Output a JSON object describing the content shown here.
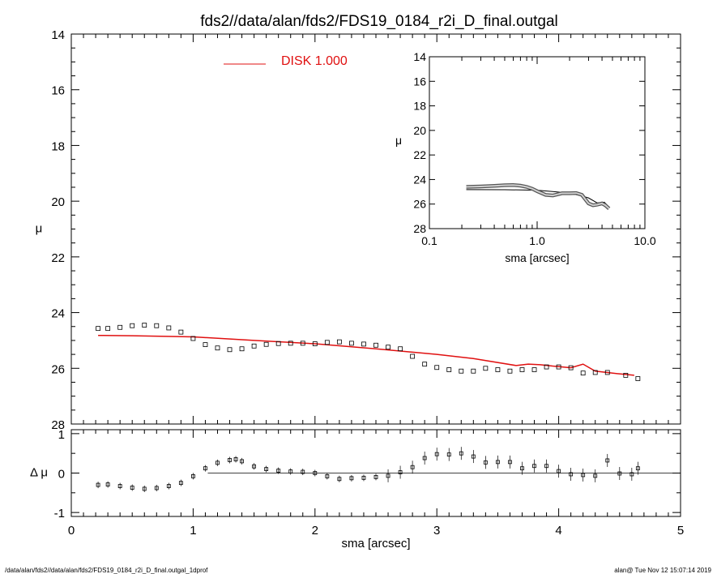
{
  "title": "fds2//data/alan/fds2/FDS19_0184_r2i_D_final.outgal",
  "footer_left": "/data/alan/fds2//data/alan/fds2/FDS19_0184_r2i_D_final.outgal_1dprof",
  "footer_right": "alan@  Tue Nov 12 15:07:14 2019",
  "colors": {
    "model": "#e01010",
    "data": "#000000"
  },
  "chart_data": [
    {
      "id": "main",
      "type": "scatter",
      "ylabel": "μ",
      "xlabel": "",
      "xlim": [
        0,
        5
      ],
      "ylim": [
        28,
        14
      ],
      "yticks": [
        14,
        16,
        18,
        20,
        22,
        24,
        26,
        28
      ],
      "legend": {
        "label": "DISK  1.000",
        "placement": "top-center"
      },
      "series": [
        {
          "name": "DISK  1.000",
          "kind": "line",
          "points": [
            [
              0.22,
              24.82
            ],
            [
              0.5,
              24.83
            ],
            [
              1.0,
              24.87
            ],
            [
              1.5,
              25.0
            ],
            [
              2.0,
              25.12
            ],
            [
              2.5,
              25.3
            ],
            [
              3.0,
              25.5
            ],
            [
              3.3,
              25.65
            ],
            [
              3.65,
              25.9
            ],
            [
              3.75,
              25.85
            ],
            [
              3.85,
              25.87
            ],
            [
              3.95,
              25.92
            ],
            [
              4.1,
              25.98
            ],
            [
              4.2,
              25.85
            ],
            [
              4.3,
              26.1
            ],
            [
              4.5,
              26.2
            ],
            [
              4.62,
              26.25
            ]
          ]
        },
        {
          "kind": "markers",
          "points": [
            [
              0.22,
              24.57
            ],
            [
              0.3,
              24.57
            ],
            [
              0.4,
              24.53
            ],
            [
              0.5,
              24.47
            ],
            [
              0.6,
              24.45
            ],
            [
              0.7,
              24.47
            ],
            [
              0.8,
              24.55
            ],
            [
              0.9,
              24.7
            ],
            [
              1.0,
              24.93
            ],
            [
              1.1,
              25.15
            ],
            [
              1.2,
              25.27
            ],
            [
              1.3,
              25.33
            ],
            [
              1.4,
              25.3
            ],
            [
              1.5,
              25.2
            ],
            [
              1.6,
              25.14
            ],
            [
              1.7,
              25.11
            ],
            [
              1.8,
              25.1
            ],
            [
              1.9,
              25.1
            ],
            [
              2.0,
              25.12
            ],
            [
              2.1,
              25.07
            ],
            [
              2.2,
              25.05
            ],
            [
              2.3,
              25.1
            ],
            [
              2.4,
              25.13
            ],
            [
              2.5,
              25.17
            ],
            [
              2.6,
              25.24
            ],
            [
              2.7,
              25.3
            ],
            [
              2.8,
              25.57
            ],
            [
              2.9,
              25.85
            ],
            [
              3.0,
              25.97
            ],
            [
              3.1,
              26.05
            ],
            [
              3.2,
              26.1
            ],
            [
              3.3,
              26.1
            ],
            [
              3.4,
              26.0
            ],
            [
              3.5,
              26.05
            ],
            [
              3.6,
              26.1
            ],
            [
              3.7,
              26.05
            ],
            [
              3.8,
              26.05
            ],
            [
              3.9,
              25.95
            ],
            [
              4.0,
              25.95
            ],
            [
              4.1,
              25.98
            ],
            [
              4.2,
              26.17
            ],
            [
              4.3,
              26.15
            ],
            [
              4.4,
              26.15
            ],
            [
              4.55,
              26.25
            ],
            [
              4.65,
              26.37
            ]
          ]
        }
      ]
    },
    {
      "id": "residual",
      "type": "scatter",
      "xlabel": "sma [arcsec]",
      "ylabel": "Δ μ",
      "xlim": [
        0,
        5
      ],
      "ylim": [
        -1.1,
        1.1
      ],
      "xticks": [
        0,
        1,
        2,
        3,
        4,
        5
      ],
      "yticks": [
        -1,
        0,
        1
      ],
      "reference_line": {
        "y": 0,
        "from_x": 1.12,
        "to_x": 5.0
      },
      "series": [
        {
          "kind": "markers_with_errorbars",
          "points": [
            [
              0.22,
              -0.3
            ],
            [
              0.3,
              -0.29
            ],
            [
              0.4,
              -0.33
            ],
            [
              0.5,
              -0.37
            ],
            [
              0.6,
              -0.4
            ],
            [
              0.7,
              -0.38
            ],
            [
              0.8,
              -0.33
            ],
            [
              0.9,
              -0.25
            ],
            [
              1.0,
              -0.08
            ],
            [
              1.1,
              0.12
            ],
            [
              1.2,
              0.26
            ],
            [
              1.3,
              0.33
            ],
            [
              1.35,
              0.35
            ],
            [
              1.4,
              0.3
            ],
            [
              1.5,
              0.17
            ],
            [
              1.6,
              0.1
            ],
            [
              1.7,
              0.06
            ],
            [
              1.8,
              0.04
            ],
            [
              1.9,
              0.03
            ],
            [
              2.0,
              0.0
            ],
            [
              2.1,
              -0.08
            ],
            [
              2.2,
              -0.15
            ],
            [
              2.3,
              -0.13
            ],
            [
              2.4,
              -0.12
            ],
            [
              2.5,
              -0.1
            ],
            [
              2.6,
              -0.07
            ],
            [
              2.7,
              0.02
            ],
            [
              2.8,
              0.15
            ],
            [
              2.9,
              0.38
            ],
            [
              3.0,
              0.48
            ],
            [
              3.1,
              0.47
            ],
            [
              3.2,
              0.5
            ],
            [
              3.3,
              0.42
            ],
            [
              3.4,
              0.27
            ],
            [
              3.5,
              0.28
            ],
            [
              3.6,
              0.28
            ],
            [
              3.7,
              0.12
            ],
            [
              3.8,
              0.18
            ],
            [
              3.9,
              0.18
            ],
            [
              4.0,
              0.05
            ],
            [
              4.1,
              -0.03
            ],
            [
              4.2,
              -0.05
            ],
            [
              4.3,
              -0.07
            ],
            [
              4.4,
              0.32
            ],
            [
              4.5,
              -0.01
            ],
            [
              4.6,
              -0.03
            ],
            [
              4.65,
              0.12
            ]
          ]
        }
      ]
    },
    {
      "id": "inset",
      "type": "line",
      "xlabel": "sma [arcsec]",
      "ylabel": "μ",
      "xscale": "log",
      "xlim": [
        0.1,
        10
      ],
      "ylim": [
        28,
        14
      ],
      "xticks": [
        0.1,
        1.0,
        10.0
      ],
      "xticklabels": [
        "0.1",
        "1.0",
        "10.0"
      ],
      "yticks": [
        14,
        16,
        18,
        20,
        22,
        24,
        26,
        28
      ],
      "series": [
        {
          "kind": "data",
          "points": [
            [
              0.22,
              24.6
            ],
            [
              0.3,
              24.57
            ],
            [
              0.4,
              24.52
            ],
            [
              0.5,
              24.47
            ],
            [
              0.6,
              24.45
            ],
            [
              0.7,
              24.5
            ],
            [
              0.8,
              24.6
            ],
            [
              0.9,
              24.75
            ],
            [
              1.0,
              24.95
            ],
            [
              1.2,
              25.25
            ],
            [
              1.4,
              25.3
            ],
            [
              1.7,
              25.12
            ],
            [
              2.0,
              25.12
            ],
            [
              2.3,
              25.1
            ],
            [
              2.6,
              25.25
            ],
            [
              3.0,
              25.95
            ],
            [
              3.3,
              26.1
            ],
            [
              3.6,
              26.05
            ],
            [
              4.0,
              25.95
            ],
            [
              4.3,
              26.1
            ],
            [
              4.65,
              26.37
            ]
          ]
        },
        {
          "kind": "model",
          "points": [
            [
              0.22,
              24.82
            ],
            [
              0.5,
              24.83
            ],
            [
              1.0,
              24.87
            ],
            [
              1.5,
              25.0
            ],
            [
              2.0,
              25.12
            ],
            [
              2.5,
              25.3
            ],
            [
              3.0,
              25.5
            ],
            [
              3.6,
              25.9
            ],
            [
              4.2,
              25.85
            ],
            [
              4.65,
              26.25
            ]
          ]
        }
      ]
    }
  ]
}
